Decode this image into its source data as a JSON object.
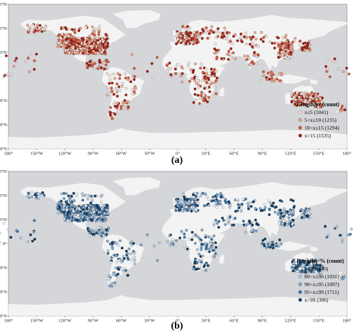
{
  "colors": {
    "ocean": "#d4d6d9",
    "land": "#f3f3f3",
    "ramp_red": [
      "#fbe8e1",
      "#f3a98e",
      "#dd5a3a",
      "#a51d14"
    ],
    "ramp_blue": [
      "#f2f6fb",
      "#b9cfe4",
      "#7ea7cc",
      "#3f77a8",
      "#0f3d66"
    ]
  },
  "axes": {
    "x_ticks": [
      "180°",
      "150°W",
      "120°W",
      "90°W",
      "60°W",
      "30°W",
      "0°",
      "30°E",
      "60°E",
      "90°E",
      "120°E",
      "150°E",
      "180°"
    ],
    "y_ticks": [
      "90°N",
      "60°N",
      "30°N",
      "0°",
      "30°S",
      "60°S",
      "90°S"
    ]
  },
  "panels": [
    {
      "caption": "(a)",
      "legend_title": "Length/yr (count)",
      "legend_items": [
        {
          "label": "x≤5 (1041)",
          "count": 1041
        },
        {
          "label": "5<x≤10 (1215)",
          "count": 1215
        },
        {
          "label": "10<x≤15 (1294)",
          "count": 1294
        },
        {
          "label": "x>15 (1535)",
          "count": 1535
        }
      ]
    },
    {
      "caption": "(b)",
      "legend_title": "Integrity/% (count)",
      "legend_items": [
        {
          "label": "x≤80 (940)",
          "count": 940
        },
        {
          "label": "80<x≤90 (1031)",
          "count": 1031
        },
        {
          "label": "90<x≤95 (1097)",
          "count": 1097
        },
        {
          "label": "95<x≤99 (1711)",
          "count": 1711
        },
        {
          "label": "x>99 (306)",
          "count": 306
        }
      ]
    }
  ]
}
